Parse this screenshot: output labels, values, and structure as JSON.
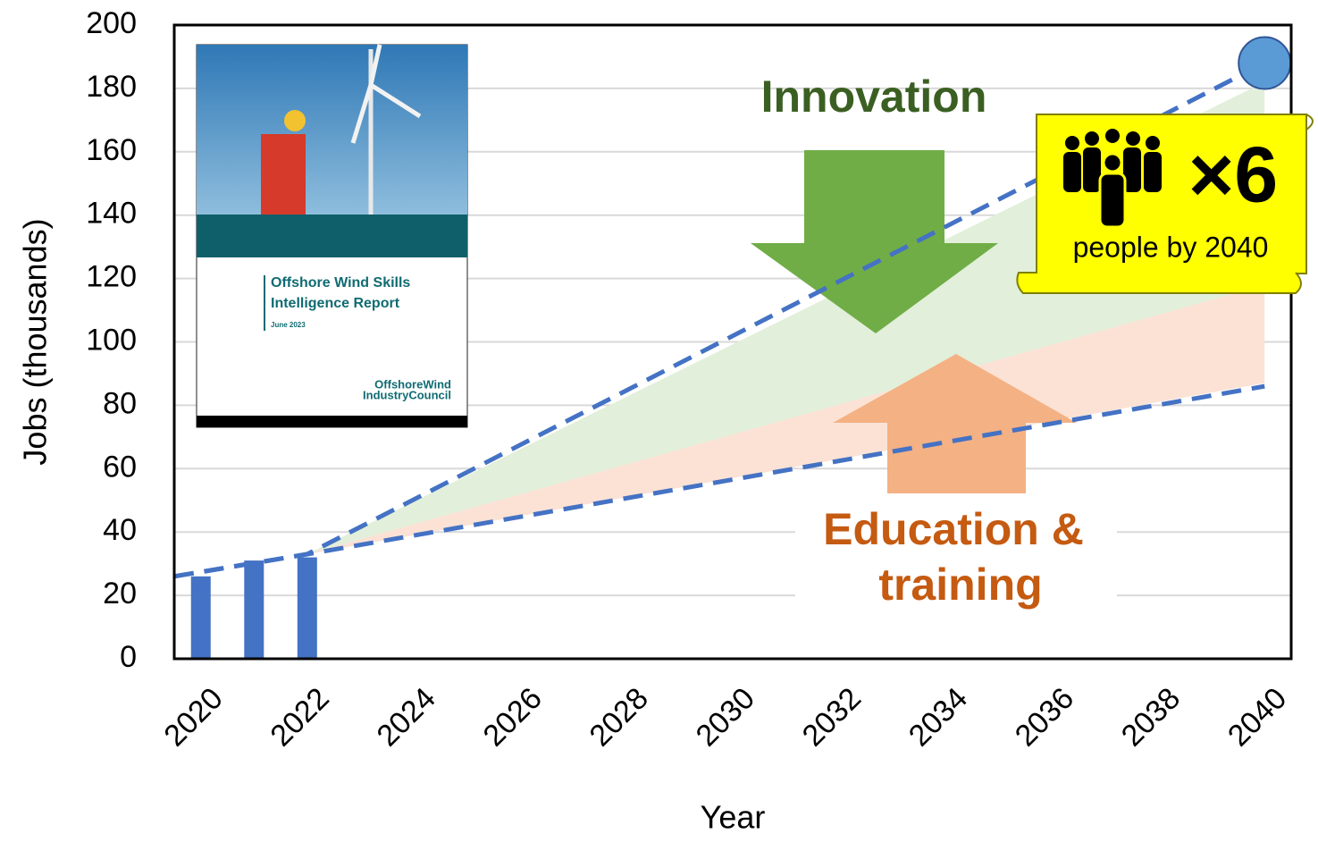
{
  "chart_data": {
    "type": "bar",
    "x_label": "Year",
    "y_label": "Jobs (thousands)",
    "x": [
      2020,
      2021,
      2022
    ],
    "values": [
      26,
      31,
      32
    ],
    "color": "#4472c4",
    "xlim": [
      2019.5,
      2040.5
    ],
    "xticks": [
      2020,
      2022,
      2024,
      2026,
      2028,
      2030,
      2032,
      2034,
      2036,
      2038,
      2040
    ],
    "ylim": [
      0,
      200
    ],
    "yticks": [
      0,
      20,
      40,
      60,
      80,
      100,
      120,
      140,
      160,
      180,
      200
    ],
    "grid": true,
    "areas": [
      {
        "color": "#e2efda",
        "x": [
          2022,
          2040
        ],
        "upper": [
          33,
          182
        ],
        "lower": [
          33,
          118
        ]
      },
      {
        "color": "#fbe2d5",
        "x": [
          2022,
          2040
        ],
        "upper": [
          33,
          118
        ],
        "lower": [
          33,
          87
        ]
      }
    ],
    "lines": [
      {
        "color": "#4472c4",
        "x": [
          2019.5,
          2022,
          2040
        ],
        "values": [
          26,
          33,
          188
        ]
      },
      {
        "color": "#4472c4",
        "x": [
          2019.5,
          2022,
          2040
        ],
        "values": [
          26,
          33,
          86
        ]
      }
    ],
    "marker_color": "#5b9bd5",
    "annotations": {
      "innovation": "Innovation",
      "education": [
        "Education &",
        "training"
      ],
      "multiplier": "×6",
      "multiplier_note": "people by 2040",
      "report_title": [
        "Offshore Wind Skills",
        "Intelligence Report"
      ],
      "report_date": "June 2023",
      "report_publisher": [
        "OffshoreWind",
        "IndustryCouncil"
      ]
    }
  }
}
